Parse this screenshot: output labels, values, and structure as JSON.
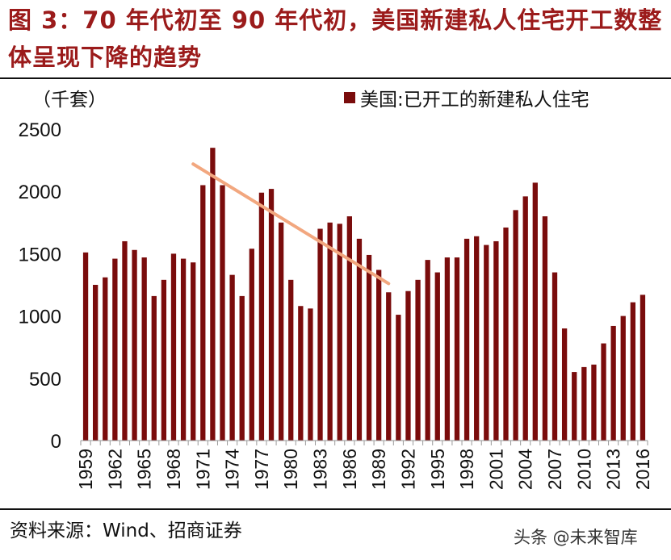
{
  "title": "图 3：70 年代初至 90 年代初，美国新建私人住宅开工数整体呈现下降的趋势",
  "source": "资料来源：Wind、招商证券",
  "watermark": "头条 @未来智库",
  "colors": {
    "bar": "#7a0c0c",
    "trend": "#f2a77f",
    "title": "#9b1b1b"
  },
  "chart_data": {
    "type": "bar",
    "title": "",
    "ylabel": "（千套）",
    "legend": "美国:已开工的新建私人住宅",
    "legend_position": "top-right",
    "ylim": [
      0,
      2500
    ],
    "yticks": [
      0,
      500,
      1000,
      1500,
      2000,
      2500
    ],
    "xtick_labels": [
      "1959",
      "1962",
      "1965",
      "1968",
      "1971",
      "1974",
      "1977",
      "1980",
      "1983",
      "1986",
      "1989",
      "1992",
      "1995",
      "1998",
      "2001",
      "2004",
      "2007",
      "2010",
      "2013",
      "2016"
    ],
    "x": [
      1959,
      1960,
      1961,
      1962,
      1963,
      1964,
      1965,
      1966,
      1967,
      1968,
      1969,
      1970,
      1971,
      1972,
      1973,
      1974,
      1975,
      1976,
      1977,
      1978,
      1979,
      1980,
      1981,
      1982,
      1983,
      1984,
      1985,
      1986,
      1987,
      1988,
      1989,
      1990,
      1991,
      1992,
      1993,
      1994,
      1995,
      1996,
      1997,
      1998,
      1999,
      2000,
      2001,
      2002,
      2003,
      2004,
      2005,
      2006,
      2007,
      2008,
      2009,
      2010,
      2011,
      2012,
      2013,
      2014,
      2015,
      2016
    ],
    "values": [
      1510,
      1250,
      1310,
      1460,
      1600,
      1530,
      1470,
      1160,
      1290,
      1500,
      1460,
      1430,
      2050,
      2350,
      2050,
      1330,
      1160,
      1540,
      1990,
      2020,
      1750,
      1290,
      1080,
      1060,
      1700,
      1750,
      1740,
      1800,
      1620,
      1490,
      1370,
      1190,
      1010,
      1200,
      1290,
      1450,
      1350,
      1470,
      1470,
      1620,
      1640,
      1570,
      1600,
      1710,
      1850,
      1960,
      2070,
      1800,
      1350,
      900,
      550,
      590,
      610,
      780,
      920,
      1000,
      1110,
      1170
    ],
    "trendline": {
      "x": [
        1970,
        1990
      ],
      "y": [
        2220,
        1260
      ]
    }
  }
}
